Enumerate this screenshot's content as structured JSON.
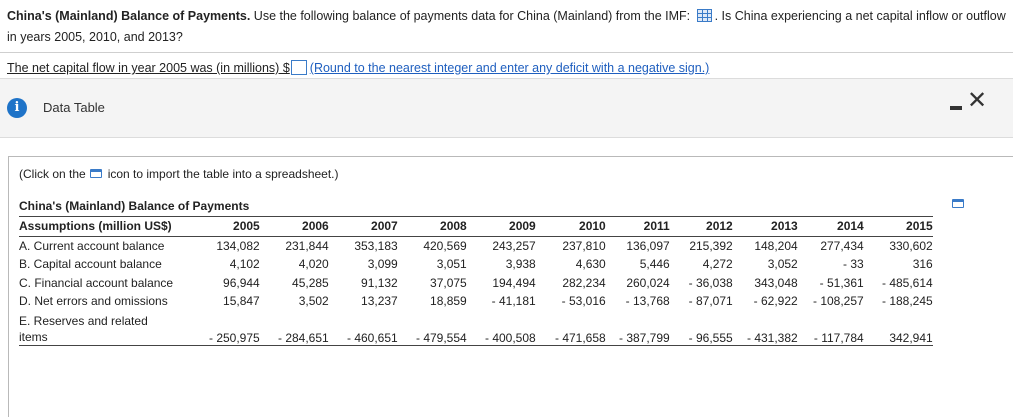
{
  "question": {
    "lead_bold": "China's (Mainland) Balance of Payments.",
    "text_before_icon": " Use the following balance of payments data for China (Mainland) from the IMF: ",
    "text_after_icon": ". Is China experiencing a net capital inflow or outflow in years 2005, 2010, and 2013?"
  },
  "answer": {
    "prefix": "The net capital flow in year 2005 was (in millions) $",
    "hint": "(Round to the nearest integer and enter any deficit with a negative sign.)"
  },
  "panel": {
    "title": "Data Table",
    "info_icon": "i",
    "close_icon": "✕",
    "click_note_before": "(Click on the",
    "click_note_after": "icon to import the table into a spreadsheet.)"
  },
  "table": {
    "title": "China's (Mainland) Balance of Payments",
    "header_label": "Assumptions (million US$)",
    "years": [
      "2005",
      "2006",
      "2007",
      "2008",
      "2009",
      "2010",
      "2011",
      "2012",
      "2013",
      "2014",
      "2015"
    ],
    "rows": [
      {
        "label": "A. Current account balance",
        "values": [
          "134,082",
          "231,844",
          "353,183",
          "420,569",
          "243,257",
          "237,810",
          "136,097",
          "215,392",
          "148,204",
          "277,434",
          "330,602"
        ]
      },
      {
        "label": "B. Capital account balance",
        "values": [
          "4,102",
          "4,020",
          "3,099",
          "3,051",
          "3,938",
          "4,630",
          "5,446",
          "4,272",
          "3,052",
          "- 33",
          "316"
        ]
      },
      {
        "label": "C. Financial account balance",
        "values": [
          "96,944",
          "45,285",
          "91,132",
          "37,075",
          "194,494",
          "282,234",
          "260,024",
          "- 36,038",
          "343,048",
          "- 51,361",
          "- 485,614"
        ]
      },
      {
        "label": "D. Net errors and omissions",
        "values": [
          "15,847",
          "3,502",
          "13,237",
          "18,859",
          "- 41,181",
          "- 53,016",
          "- 13,768",
          "- 87,071",
          "- 62,922",
          "- 108,257",
          "- 188,245"
        ]
      },
      {
        "label": "E. Reserves and related items",
        "label_line1": "E. Reserves and related",
        "label_line2": "items",
        "values": [
          "- 250,975",
          "- 284,651",
          "- 460,651",
          "- 479,554",
          "- 400,508",
          "- 471,658",
          "- 387,799",
          "- 96,555",
          "- 431,382",
          "- 117,784",
          "342,941"
        ]
      }
    ]
  },
  "colors": {
    "accent": "#1e73c8",
    "link": "#1f5fbf"
  }
}
